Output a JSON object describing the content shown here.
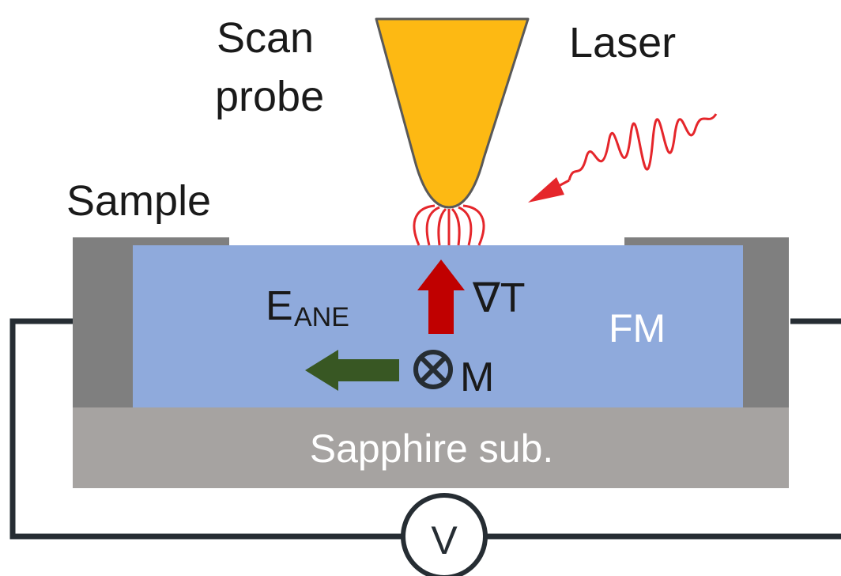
{
  "labels": {
    "scan_probe_line1": "Scan",
    "scan_probe_line2": "probe",
    "laser": "Laser",
    "sample": "Sample",
    "field_main": "E",
    "field_sub": "ANE",
    "gradient": "∇T",
    "magnetization_symbol": "⊗",
    "magnetization": "M",
    "ferromagnet": "FM",
    "substrate": "Sapphire sub.",
    "voltmeter": "V"
  },
  "colors": {
    "probe_fill": "#FDB913",
    "probe_stroke": "#595959",
    "laser_red": "#E5262B",
    "fm_blue": "#8FAADC",
    "electrode_gray": "#7F7F7F",
    "substrate_gray": "#A6A3A1",
    "gradient_arrow": "#C00000",
    "field_arrow": "#385723",
    "wire": "#262D33"
  }
}
